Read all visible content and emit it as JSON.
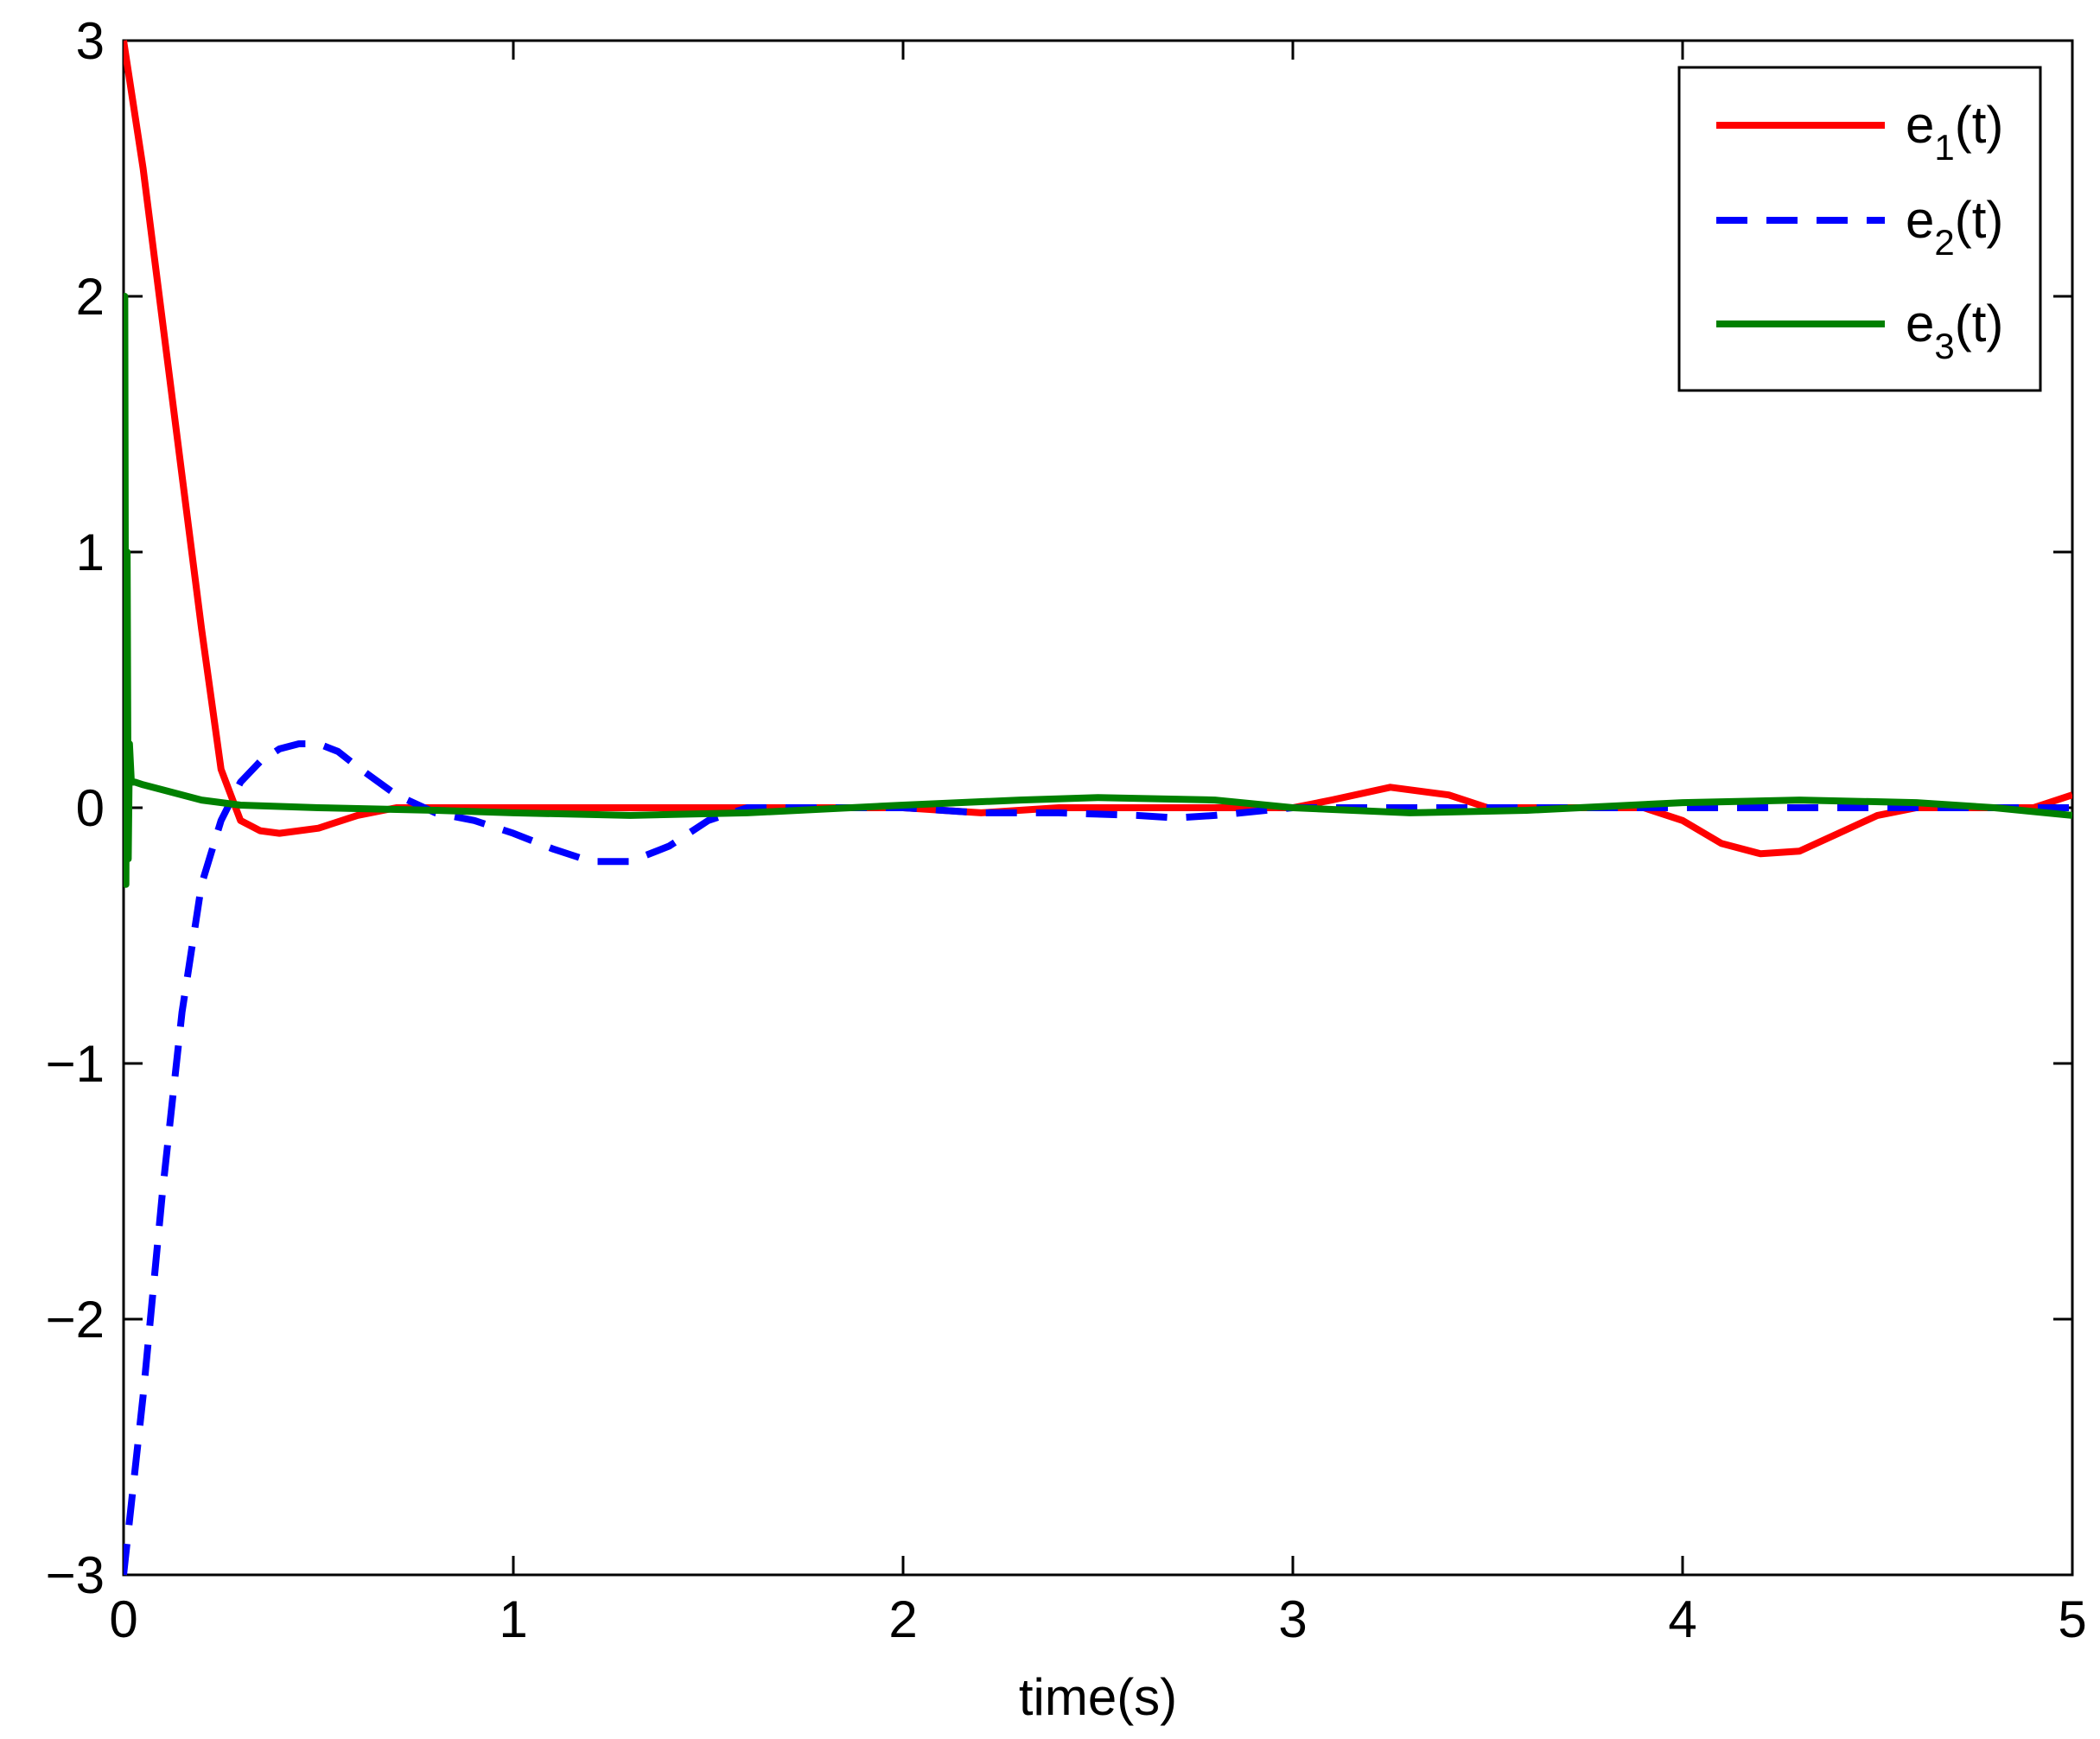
{
  "chart_data": {
    "type": "line",
    "title": "",
    "xlabel": "time(s)",
    "ylabel": "",
    "xlim": [
      0,
      5
    ],
    "ylim": [
      -3,
      3
    ],
    "xticks": [
      0,
      1,
      2,
      3,
      4,
      5
    ],
    "xtick_labels": [
      "0",
      "1",
      "2",
      "3",
      "4",
      "5"
    ],
    "yticks": [
      -3,
      -2,
      -1,
      0,
      1,
      2,
      3
    ],
    "ytick_labels": [
      "−3",
      "−2",
      "−1",
      "0",
      "1",
      "2",
      "3"
    ],
    "grid": false,
    "legend_position": "top-right",
    "series": [
      {
        "name": "e1(t)",
        "legend_base": "e",
        "legend_sub": "1",
        "legend_suffix": "(t)",
        "color": "#ff0000",
        "style": "solid",
        "x": [
          0,
          0.05,
          0.1,
          0.15,
          0.2,
          0.25,
          0.3,
          0.35,
          0.4,
          0.5,
          0.6,
          0.7,
          0.8,
          1.0,
          1.2,
          1.4,
          1.6,
          1.8,
          2.0,
          2.2,
          2.4,
          2.6,
          2.8,
          3.0,
          3.1,
          3.25,
          3.4,
          3.5,
          3.7,
          3.9,
          4.0,
          4.1,
          4.2,
          4.3,
          4.4,
          4.5,
          4.6,
          4.7,
          4.8,
          4.9,
          5.0
        ],
        "y": [
          3.0,
          2.5,
          1.9,
          1.3,
          0.7,
          0.15,
          -0.05,
          -0.09,
          -0.1,
          -0.08,
          -0.03,
          0.0,
          0.0,
          0.0,
          0.0,
          0.0,
          0.0,
          0.0,
          0.0,
          -0.02,
          0.0,
          0.0,
          0.0,
          0.0,
          0.03,
          0.08,
          0.05,
          0.0,
          0.0,
          0.0,
          -0.05,
          -0.14,
          -0.18,
          -0.17,
          -0.1,
          -0.03,
          0.0,
          0.0,
          0.0,
          0.0,
          0.05
        ]
      },
      {
        "name": "e2(t)",
        "legend_base": "e",
        "legend_sub": "2",
        "legend_suffix": "(t)",
        "color": "#0000ff",
        "style": "dashed",
        "x": [
          0,
          0.05,
          0.1,
          0.15,
          0.2,
          0.25,
          0.3,
          0.35,
          0.4,
          0.45,
          0.5,
          0.55,
          0.6,
          0.7,
          0.8,
          0.9,
          1.0,
          1.1,
          1.2,
          1.3,
          1.4,
          1.5,
          1.6,
          1.8,
          2.0,
          2.2,
          2.4,
          2.6,
          2.7,
          2.8,
          3.0,
          3.2,
          3.4,
          3.6,
          3.8,
          4.0,
          4.2,
          4.4,
          4.6,
          4.8,
          5.0
        ],
        "y": [
          -3.0,
          -2.3,
          -1.5,
          -0.8,
          -0.3,
          -0.05,
          0.1,
          0.18,
          0.23,
          0.25,
          0.25,
          0.22,
          0.16,
          0.05,
          -0.02,
          -0.05,
          -0.1,
          -0.16,
          -0.21,
          -0.21,
          -0.15,
          -0.05,
          0.0,
          0.0,
          0.0,
          -0.02,
          -0.02,
          -0.03,
          -0.04,
          -0.03,
          0.0,
          0.0,
          0.0,
          0.0,
          0.0,
          0.0,
          0.0,
          0.0,
          0.0,
          0.0,
          0.0
        ]
      },
      {
        "name": "e3(t)",
        "legend_base": "e",
        "legend_sub": "3",
        "legend_suffix": "(t)",
        "color": "#008000",
        "style": "solid",
        "x": [
          0,
          0.003,
          0.006,
          0.009,
          0.012,
          0.015,
          0.02,
          0.03,
          0.05,
          0.1,
          0.2,
          0.3,
          0.5,
          0.8,
          1.0,
          1.3,
          1.6,
          2.0,
          2.3,
          2.5,
          2.8,
          3.0,
          3.3,
          3.6,
          4.0,
          4.3,
          4.6,
          4.8,
          5.0
        ],
        "y": [
          0.0,
          2.0,
          -0.3,
          1.0,
          -0.2,
          0.25,
          0.1,
          0.1,
          0.09,
          0.07,
          0.03,
          0.01,
          0.0,
          -0.01,
          -0.02,
          -0.03,
          -0.02,
          0.01,
          0.03,
          0.04,
          0.03,
          0.0,
          -0.02,
          -0.01,
          0.02,
          0.03,
          0.02,
          0.0,
          -0.03
        ]
      }
    ]
  }
}
